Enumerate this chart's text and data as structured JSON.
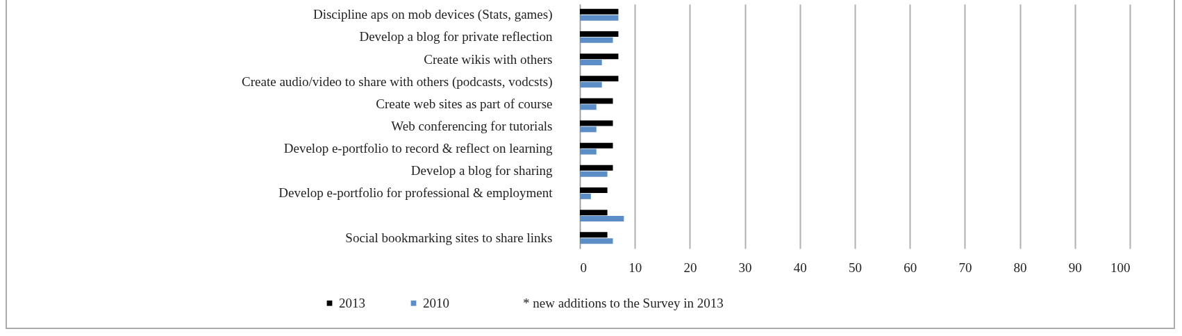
{
  "chart_data": {
    "type": "bar",
    "orientation": "horizontal",
    "categories": [
      "Discipline aps on mob devices (Stats, games)",
      "Develop a blog for private reflection",
      "Create wikis with others",
      "Create audio/video to share with others (podcasts, vodcsts)",
      "Create web sites as part of course",
      "Web conferencing for tutorials",
      "Develop e-portfolio to record & reflect on learning",
      "Develop a blog for sharing",
      "Develop e-portfolio for professional & employment",
      null,
      "Social bookmarking sites to share links"
    ],
    "series": [
      {
        "name": "2013",
        "color": "#000000",
        "values": [
          7,
          7,
          7,
          7,
          6,
          6,
          6,
          6,
          5,
          5,
          5
        ]
      },
      {
        "name": "2010",
        "color": "#5b8ec7",
        "values": [
          7,
          6,
          4,
          4,
          3,
          3,
          3,
          5,
          2,
          8,
          6
        ]
      }
    ],
    "xlim": [
      0,
      100
    ],
    "xticks": [
      0,
      10,
      20,
      30,
      40,
      50,
      60,
      70,
      80,
      90,
      100
    ],
    "grid": "x",
    "legend": "bottom",
    "annotations": [
      "* new additions to the Survey in 2013"
    ]
  }
}
